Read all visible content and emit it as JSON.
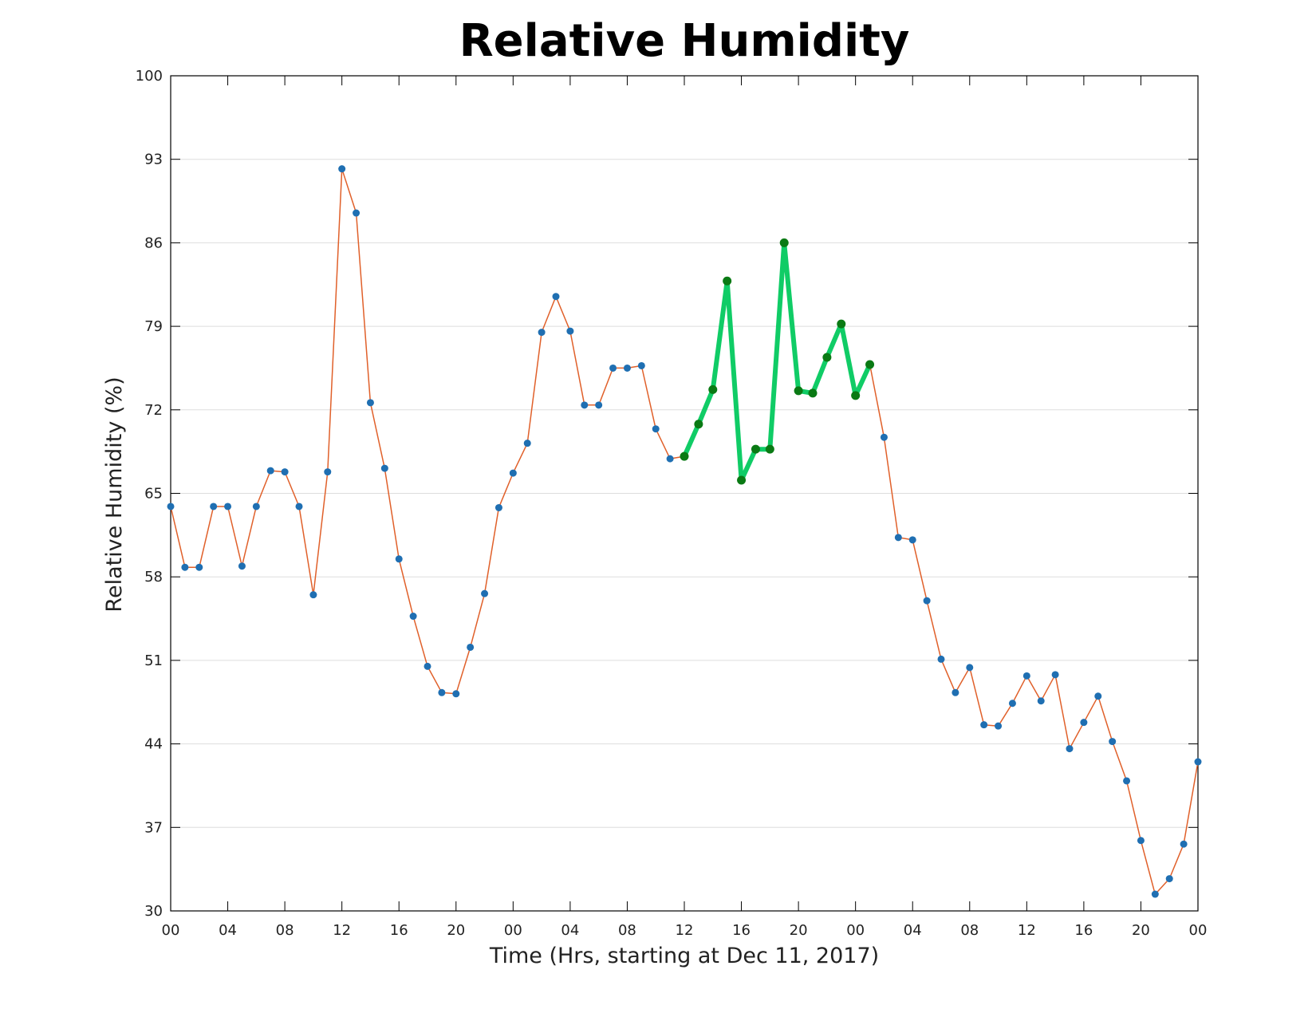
{
  "chart_data": {
    "type": "line",
    "title": "Relative Humidity",
    "xlabel": "Time (Hrs, starting at Dec 11, 2017)",
    "ylabel": "Relative Humidity (%)",
    "xlim": [
      0,
      72
    ],
    "ylim": [
      30,
      100
    ],
    "yticks": [
      30,
      37,
      44,
      51,
      58,
      65,
      72,
      79,
      86,
      93,
      100
    ],
    "xticks": [
      0,
      4,
      8,
      12,
      16,
      20,
      24,
      28,
      32,
      36,
      40,
      44,
      48,
      52,
      56,
      60,
      64,
      68,
      72
    ],
    "xtick_labels": [
      "00",
      "04",
      "08",
      "12",
      "16",
      "20",
      "00",
      "04",
      "08",
      "12",
      "16",
      "20",
      "00",
      "04",
      "08",
      "12",
      "16",
      "20",
      "00"
    ],
    "grid": "horizontal",
    "colors": {
      "line": "#e0602a",
      "marker": "#1f6fb2",
      "highlight_line": "#10cc66",
      "highlight_marker": "#0a7a14",
      "grid": "#dddddd",
      "axes": "#000000"
    },
    "series": [
      {
        "role": "main",
        "x": [
          0,
          1,
          2,
          3,
          4,
          5,
          6,
          7,
          8,
          9,
          10,
          11,
          12,
          13,
          14,
          15,
          16,
          17,
          18,
          19,
          20,
          21,
          22,
          23,
          24,
          25,
          26,
          27,
          28,
          29,
          30,
          31,
          32,
          33,
          34,
          35,
          36,
          37,
          38,
          39,
          40,
          41,
          42,
          43,
          44,
          45,
          46,
          47,
          48,
          49,
          50,
          51,
          52,
          53,
          54,
          55,
          56,
          57,
          58,
          59,
          60,
          61,
          62,
          63,
          64,
          65,
          66,
          67,
          68,
          69,
          70,
          71,
          72
        ],
        "values": [
          63.9,
          58.8,
          58.8,
          63.9,
          63.9,
          58.9,
          63.9,
          66.9,
          66.8,
          63.9,
          56.5,
          66.8,
          92.2,
          88.5,
          72.6,
          67.1,
          59.5,
          54.7,
          50.5,
          48.3,
          48.2,
          52.1,
          56.6,
          63.8,
          66.7,
          69.2,
          78.5,
          81.5,
          78.6,
          72.4,
          72.4,
          75.5,
          75.5,
          75.7,
          70.4,
          67.9,
          68.1,
          70.8,
          73.7,
          82.8,
          66.1,
          68.7,
          68.7,
          86.0,
          73.6,
          73.4,
          76.4,
          79.2,
          73.2,
          75.8,
          69.7,
          61.3,
          61.1,
          56.0,
          51.1,
          48.3,
          50.4,
          45.6,
          45.5,
          47.4,
          49.7,
          47.6,
          49.8,
          43.6,
          45.8,
          48.0,
          44.2,
          40.9,
          35.9,
          31.4,
          32.7,
          35.6,
          42.5
        ]
      },
      {
        "role": "highlight",
        "x": [
          36,
          37,
          38,
          39,
          40,
          41,
          42,
          43,
          44,
          45,
          46,
          47,
          48,
          49
        ],
        "values": [
          68.1,
          70.8,
          73.7,
          82.8,
          66.1,
          68.7,
          68.7,
          86.0,
          73.6,
          73.4,
          76.4,
          79.2,
          73.2,
          75.8
        ]
      }
    ]
  }
}
